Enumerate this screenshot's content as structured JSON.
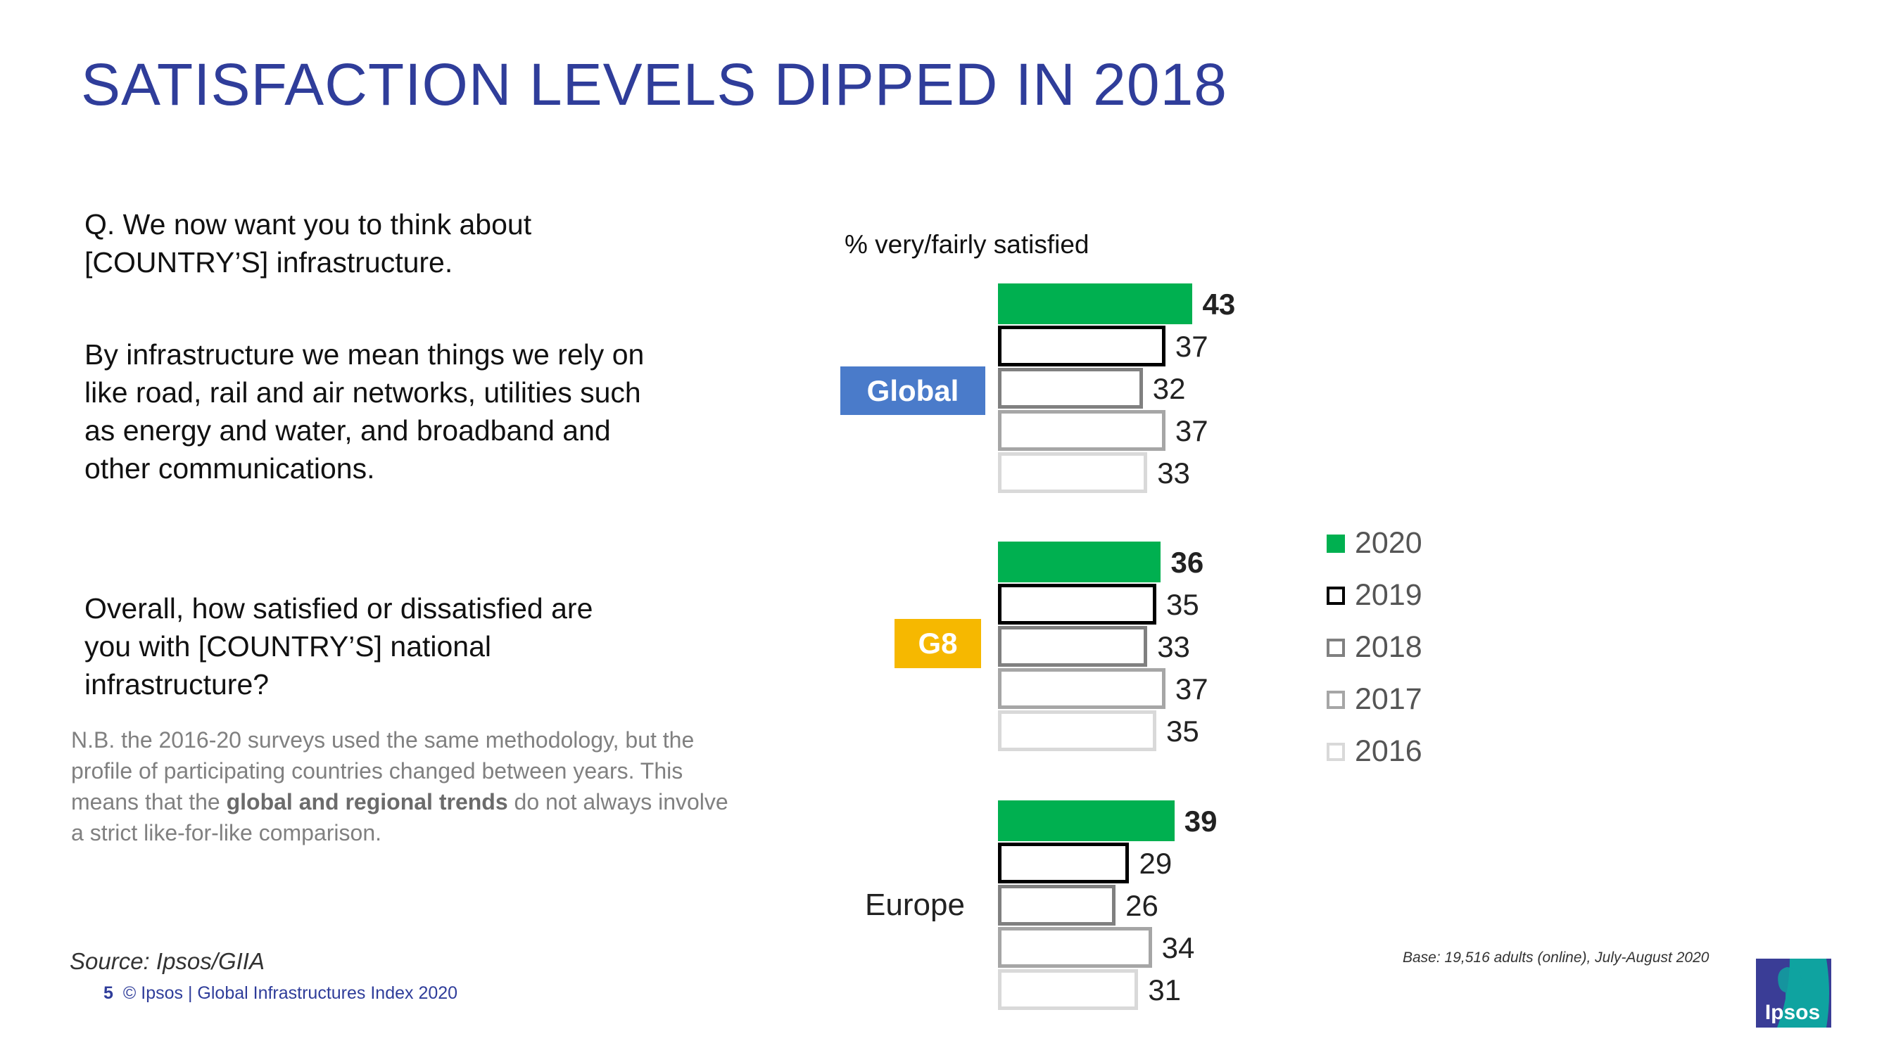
{
  "title": "SATISFACTION LEVELS DIPPED IN 2018",
  "question": {
    "intro": "Q. We now want you to think about [COUNTRY’S] infrastructure.",
    "definition": "By infrastructure we mean things we rely on like road, rail and air networks, utilities such as energy and water, and broadband and other communications.",
    "ask": "Overall, how satisfied or dissatisfied are you with [COUNTRY’S] national infrastructure?"
  },
  "note": {
    "before": "N.B. the 2016-20 surveys used the same methodology, but the profile of participating countries changed between years. This means that the ",
    "bold": "global and regional trends",
    "after": " do not always involve a strict like-for-like comparison."
  },
  "source": "Source: Ipsos/GIIA",
  "footer": {
    "page": "5",
    "text": "© Ipsos | Global Infrastructures Index 2020"
  },
  "base": "Base: 19,516 adults (online), July-August 2020",
  "logo_text": "Ipsos",
  "chart_data": {
    "type": "bar",
    "orientation": "horizontal",
    "ylabel": "% very/fairly satisfied",
    "categories": [
      "Global",
      "G8",
      "Europe"
    ],
    "category_colors": {
      "Global": "#4a7bca",
      "G8": "#f6b800",
      "Europe": null
    },
    "series": [
      {
        "name": "2020",
        "values": [
          43,
          36,
          39
        ],
        "fill": "#00b050",
        "border": "#00b050",
        "bold_labels": true
      },
      {
        "name": "2019",
        "values": [
          37,
          35,
          29
        ],
        "fill": "#ffffff",
        "border": "#000000"
      },
      {
        "name": "2018",
        "values": [
          32,
          33,
          26
        ],
        "fill": "#ffffff",
        "border": "#808080"
      },
      {
        "name": "2017",
        "values": [
          37,
          37,
          34
        ],
        "fill": "#ffffff",
        "border": "#a6a6a6"
      },
      {
        "name": "2016",
        "values": [
          33,
          35,
          31
        ],
        "fill": "#ffffff",
        "border": "#d9d9d9"
      }
    ],
    "legend_position": "right",
    "data_labels": true,
    "grid": false
  }
}
